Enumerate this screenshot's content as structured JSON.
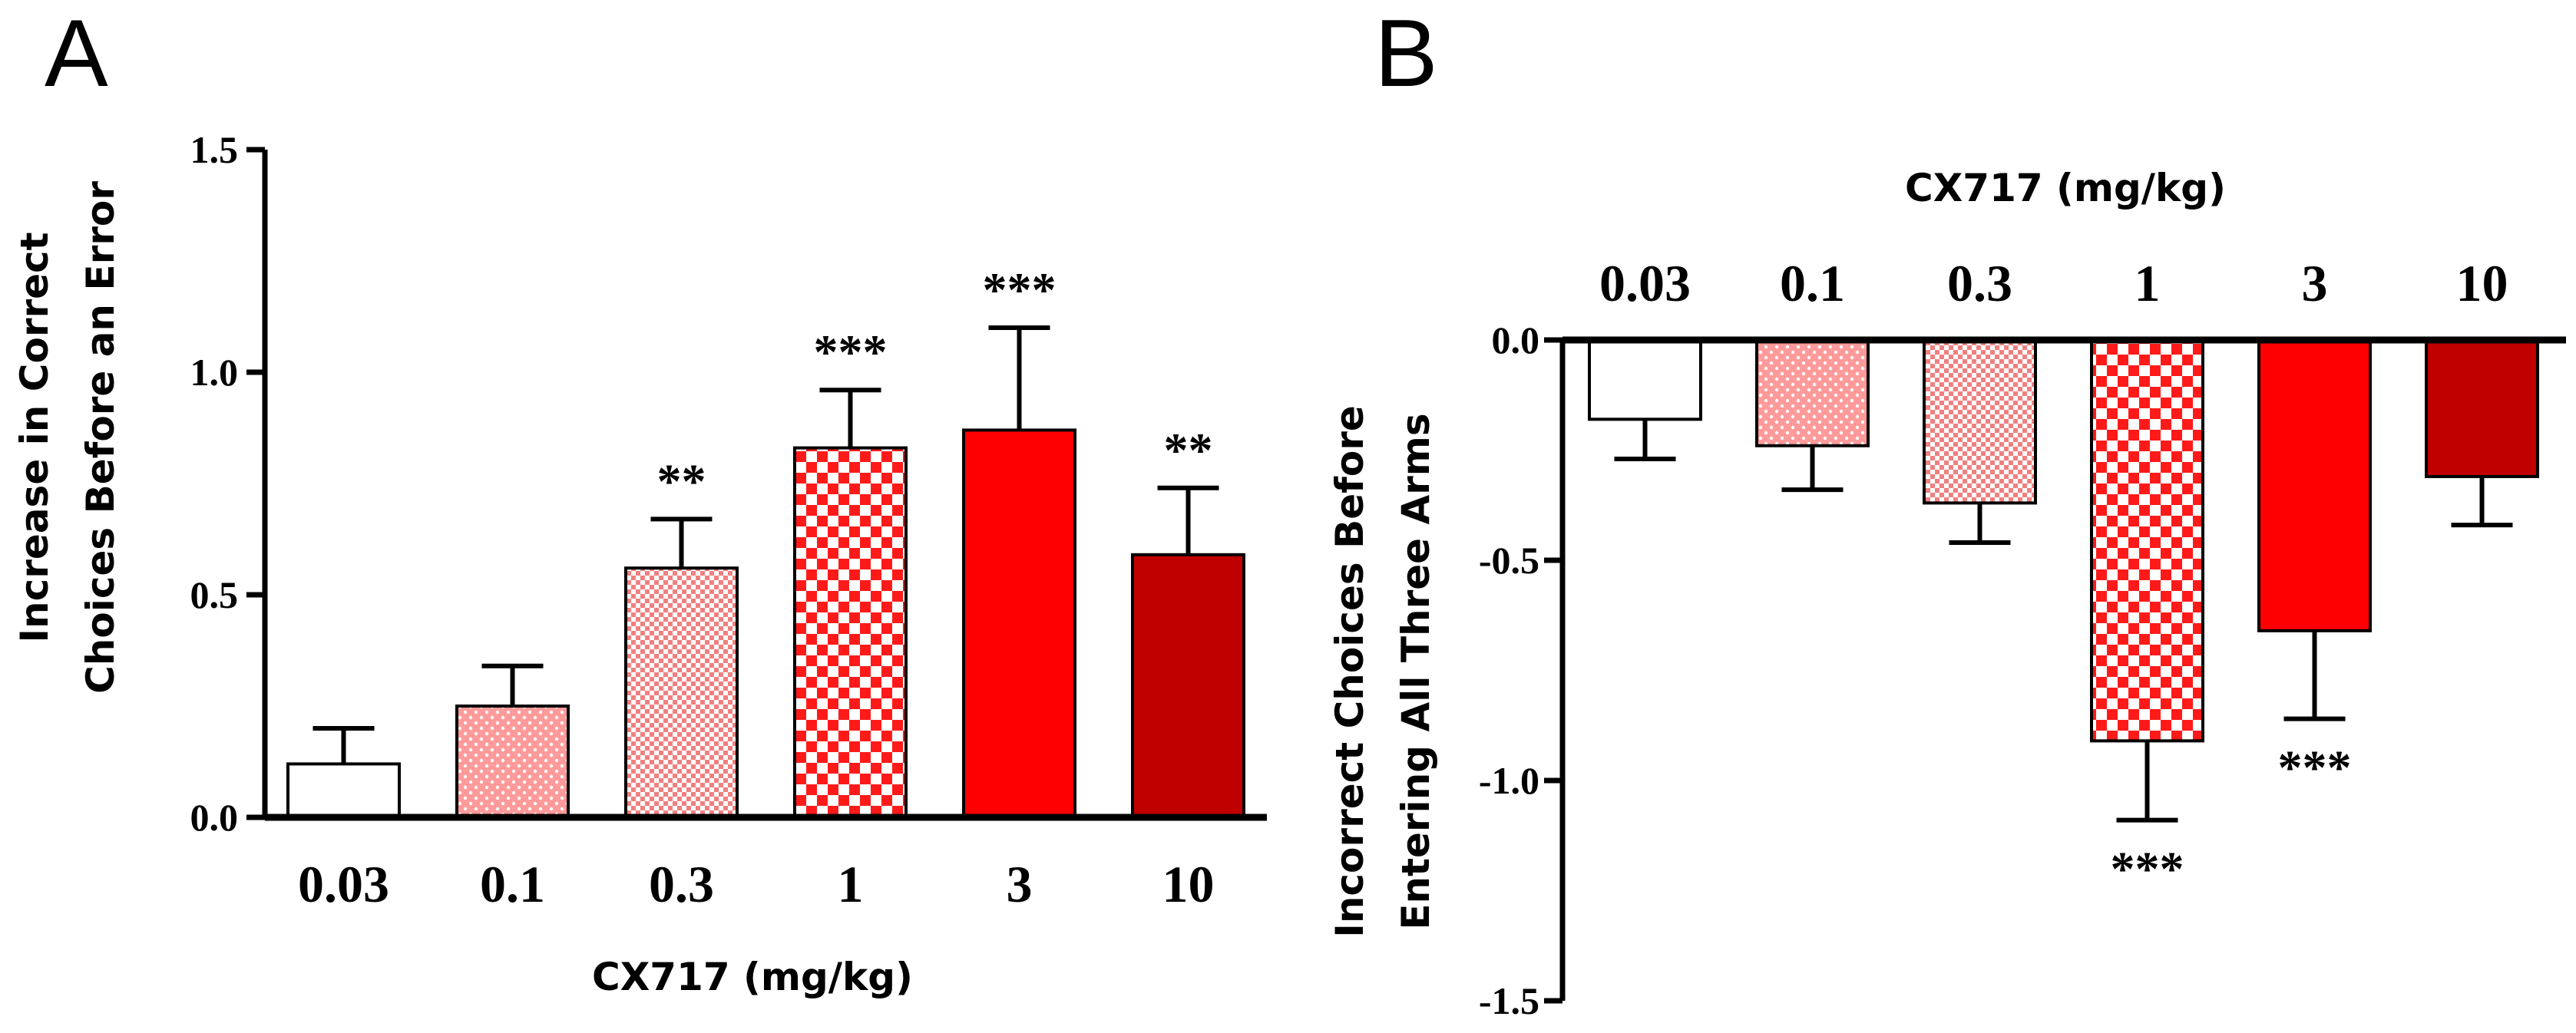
{
  "panel_letters": [
    "A",
    "B"
  ],
  "pattern_fills": {
    "white": "#ffffff",
    "pink-dots": "pink-dots",
    "pink-fine-check": "pink-fine-check",
    "red-checker": "red-checker",
    "red": "#ff0000",
    "darkred": "#c00000"
  },
  "chart_data": [
    {
      "panel": "A",
      "type": "bar",
      "categories": [
        "0.03",
        "0.1",
        "0.3",
        "1",
        "3",
        "10"
      ],
      "values": [
        0.12,
        0.25,
        0.56,
        0.83,
        0.87,
        0.59
      ],
      "errors": [
        0.08,
        0.09,
        0.11,
        0.13,
        0.23,
        0.15
      ],
      "significance": [
        "",
        "",
        "**",
        "***",
        "***",
        "**"
      ],
      "fills": [
        "white",
        "pink-dots",
        "pink-fine-check",
        "red-checker",
        "red",
        "darkred"
      ],
      "xlabel": "CX717 (mg/kg)",
      "ylabel": [
        "Increase in Correct",
        "Choices Before an Error"
      ],
      "ylim": [
        0,
        1.5
      ],
      "yticks": [
        "0.0",
        "0.5",
        "1.0",
        "1.5"
      ],
      "grid": false,
      "legend": "none"
    },
    {
      "panel": "B",
      "type": "bar",
      "categories": [
        "0.03",
        "0.1",
        "0.3",
        "1",
        "3",
        "10"
      ],
      "values": [
        -0.18,
        -0.24,
        -0.37,
        -0.91,
        -0.66,
        -0.31
      ],
      "errors": [
        0.09,
        0.1,
        0.09,
        0.18,
        0.2,
        0.11
      ],
      "significance": [
        "",
        "",
        "",
        "***",
        "***",
        ""
      ],
      "fills": [
        "white",
        "pink-dots",
        "pink-fine-check",
        "red-checker",
        "red",
        "darkred"
      ],
      "xlabel": "CX717 (mg/kg)",
      "ylabel": [
        "Incorrect Choices Before",
        "Entering All Three Arms"
      ],
      "ylim": [
        -1.5,
        0
      ],
      "yticks": [
        "0.0",
        "-0.5",
        "-1.0",
        "-1.5"
      ],
      "grid": false,
      "legend": "none"
    }
  ]
}
